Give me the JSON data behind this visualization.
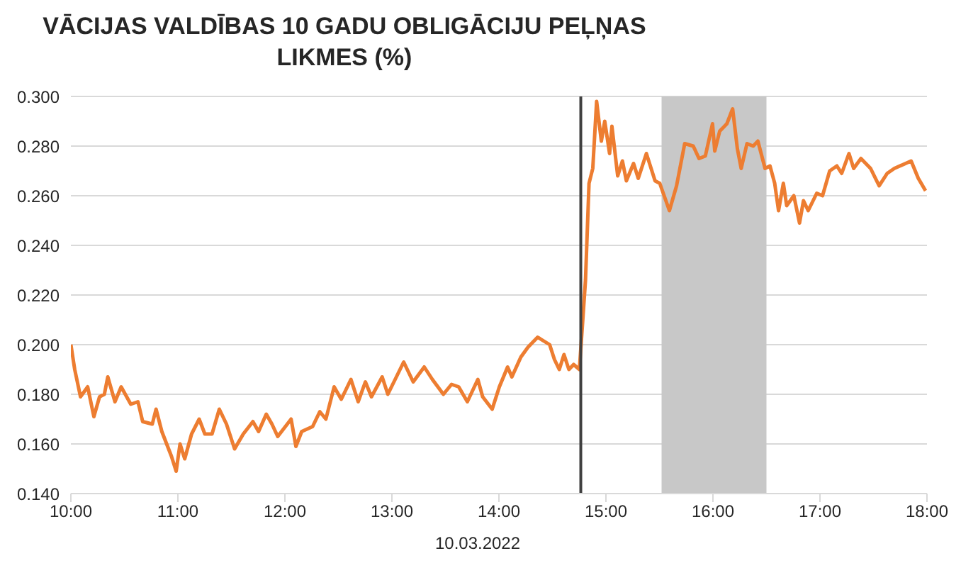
{
  "chart_data": {
    "type": "line",
    "title": "VĀCIJAS VALDĪBAS 10 GADU OBLIGĀCIJU PEĻŅAS LIKMES (%)",
    "annotations": [
      "10.03.2022"
    ],
    "x": [
      10.0,
      10.036,
      10.09,
      10.157,
      10.215,
      10.268,
      10.313,
      10.345,
      10.412,
      10.47,
      10.56,
      10.627,
      10.671,
      10.761,
      10.796,
      10.85,
      10.94,
      10.984,
      11.02,
      11.064,
      11.128,
      11.199,
      11.252,
      11.319,
      11.387,
      11.454,
      11.53,
      11.611,
      11.701,
      11.754,
      11.826,
      11.879,
      11.933,
      12.058,
      12.103,
      12.157,
      12.259,
      12.326,
      12.383,
      12.46,
      12.527,
      12.617,
      12.685,
      12.752,
      12.809,
      12.909,
      12.962,
      13.11,
      13.199,
      13.302,
      13.378,
      13.481,
      13.557,
      13.624,
      13.705,
      13.803,
      13.848,
      13.937,
      14.004,
      14.081,
      14.121,
      14.205,
      14.272,
      14.362,
      14.474,
      14.519,
      14.564,
      14.608,
      14.654,
      14.698,
      14.752,
      14.809,
      14.842,
      14.877,
      14.913,
      14.957,
      14.989,
      15.034,
      15.056,
      15.11,
      15.154,
      15.191,
      15.258,
      15.302,
      15.378,
      15.459,
      15.503,
      15.593,
      15.66,
      15.736,
      15.816,
      15.87,
      15.929,
      15.996,
      16.017,
      16.063,
      16.13,
      16.184,
      16.228,
      16.264,
      16.318,
      16.376,
      16.42,
      16.487,
      16.533,
      16.577,
      16.613,
      16.658,
      16.689,
      16.756,
      16.809,
      16.846,
      16.89,
      16.97,
      17.024,
      17.091,
      17.158,
      17.203,
      17.271,
      17.315,
      17.383,
      17.473,
      17.553,
      17.628,
      17.695,
      17.852,
      17.919,
      17.987
    ],
    "series": [
      {
        "color": "#ed7d31",
        "values": [
          0.2,
          0.19,
          0.179,
          0.183,
          0.171,
          0.179,
          0.18,
          0.187,
          0.177,
          0.183,
          0.176,
          0.177,
          0.169,
          0.168,
          0.174,
          0.165,
          0.155,
          0.149,
          0.16,
          0.154,
          0.164,
          0.17,
          0.164,
          0.164,
          0.174,
          0.168,
          0.158,
          0.164,
          0.169,
          0.165,
          0.172,
          0.168,
          0.163,
          0.17,
          0.159,
          0.165,
          0.167,
          0.173,
          0.17,
          0.183,
          0.178,
          0.186,
          0.177,
          0.185,
          0.179,
          0.187,
          0.18,
          0.193,
          0.185,
          0.191,
          0.186,
          0.18,
          0.184,
          0.183,
          0.177,
          0.186,
          0.179,
          0.174,
          0.183,
          0.191,
          0.187,
          0.195,
          0.199,
          0.203,
          0.2,
          0.194,
          0.19,
          0.196,
          0.19,
          0.192,
          0.19,
          0.226,
          0.265,
          0.271,
          0.298,
          0.282,
          0.29,
          0.277,
          0.288,
          0.268,
          0.274,
          0.266,
          0.273,
          0.267,
          0.277,
          0.266,
          0.265,
          0.254,
          0.264,
          0.281,
          0.28,
          0.275,
          0.276,
          0.289,
          0.278,
          0.286,
          0.289,
          0.295,
          0.279,
          0.271,
          0.281,
          0.28,
          0.282,
          0.271,
          0.272,
          0.265,
          0.254,
          0.265,
          0.256,
          0.26,
          0.249,
          0.258,
          0.254,
          0.261,
          0.26,
          0.27,
          0.272,
          0.269,
          0.277,
          0.271,
          0.275,
          0.271,
          0.264,
          0.269,
          0.271,
          0.274,
          0.267,
          0.262
        ]
      }
    ],
    "xlim": [
      10,
      18
    ],
    "xticks": [
      {
        "value": 10,
        "label": "10:00"
      },
      {
        "value": 11,
        "label": "11:00"
      },
      {
        "value": 12,
        "label": "12:00"
      },
      {
        "value": 13,
        "label": "13:00"
      },
      {
        "value": 14,
        "label": "14:00"
      },
      {
        "value": 15,
        "label": "15:00"
      },
      {
        "value": 16,
        "label": "16:00"
      },
      {
        "value": 17,
        "label": "17:00"
      },
      {
        "value": 18,
        "label": "18:00"
      }
    ],
    "ylim": [
      0.14,
      0.3
    ],
    "yticks": [
      {
        "value": 0.14,
        "label": "0.140"
      },
      {
        "value": 0.16,
        "label": "0.160"
      },
      {
        "value": 0.18,
        "label": "0.180"
      },
      {
        "value": 0.2,
        "label": "0.200"
      },
      {
        "value": 0.22,
        "label": "0.220"
      },
      {
        "value": 0.24,
        "label": "0.240"
      },
      {
        "value": 0.26,
        "label": "0.260"
      },
      {
        "value": 0.28,
        "label": "0.280"
      },
      {
        "value": 0.3,
        "label": "0.300"
      }
    ],
    "ref_lines": [
      {
        "axis": "x",
        "value": 14.765,
        "color": "#404040"
      }
    ],
    "bands": [
      {
        "axis": "x",
        "from": 15.52,
        "to": 16.5,
        "color": "#c8c8c8"
      }
    ],
    "grid": "y",
    "marker": "none",
    "line_style": "solid"
  }
}
